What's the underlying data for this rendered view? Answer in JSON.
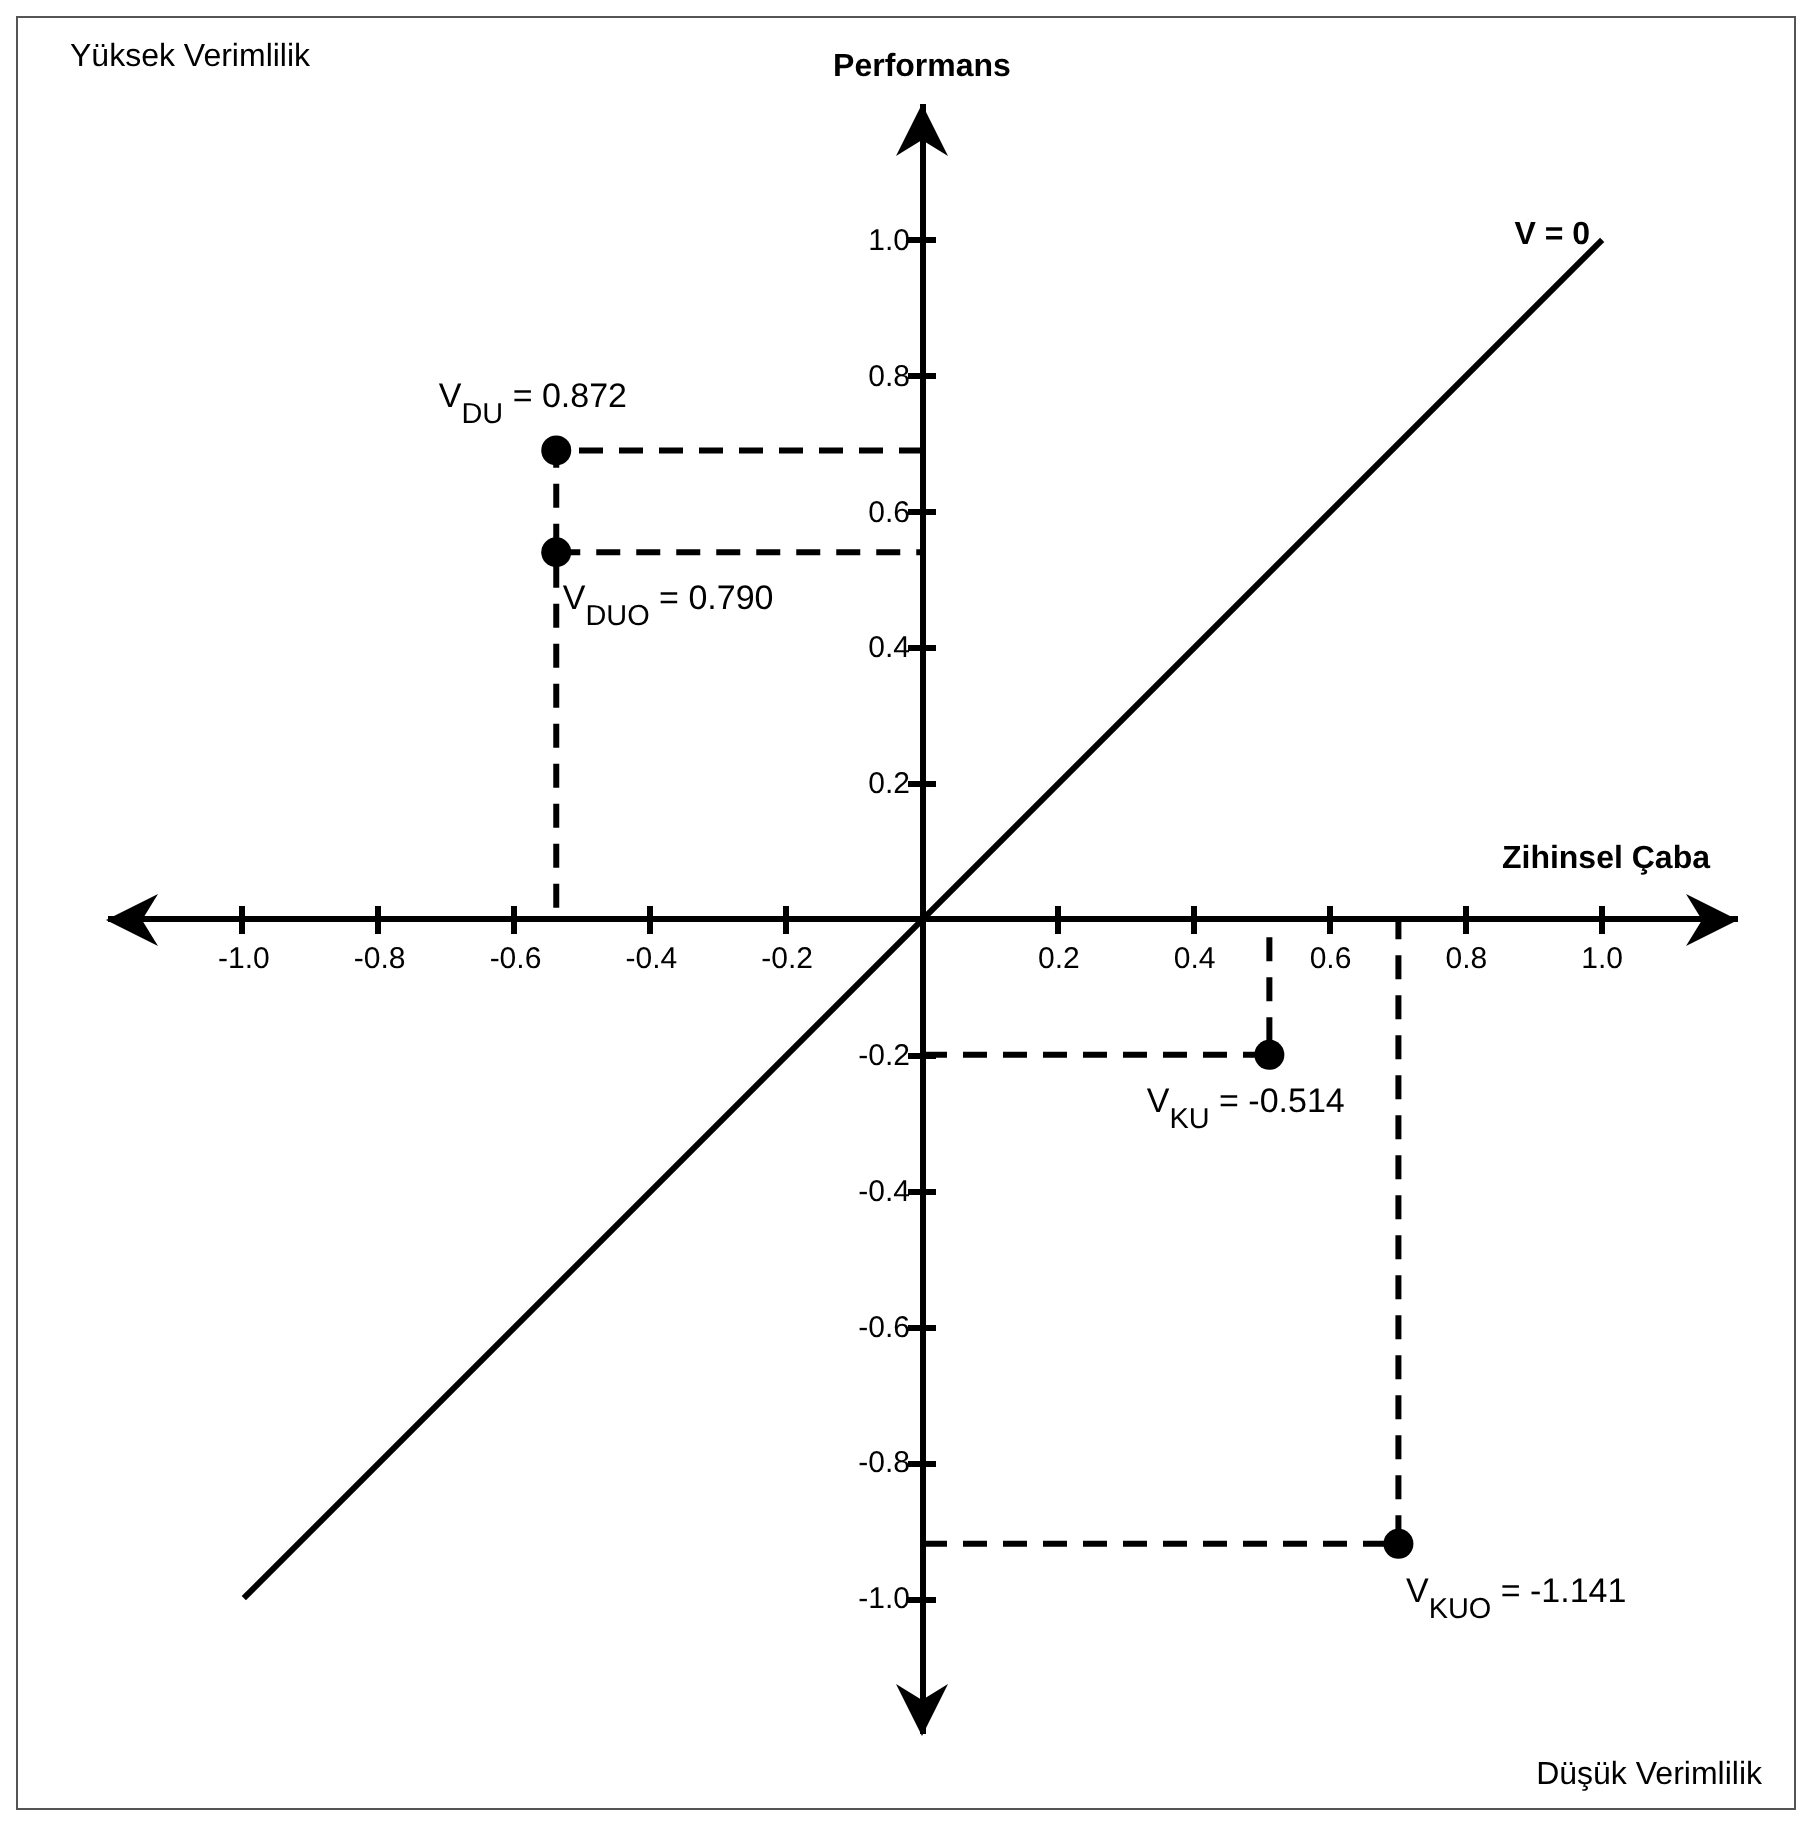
{
  "chart_data": {
    "type": "scatter",
    "xlabel": "Zihinsel Çaba",
    "ylabel": "Performans",
    "xlim": [
      -1.2,
      1.2
    ],
    "ylim": [
      -1.2,
      1.2
    ],
    "xticks": [
      {
        "value": -1,
        "label": "-1.0"
      },
      -0.8,
      -0.6,
      -0.4,
      -0.2,
      0.2,
      0.4,
      0.6,
      0.8,
      {
        "value": 1,
        "label": "1.0"
      }
    ],
    "yticks": [
      {
        "value": -1,
        "label": "-1.0"
      },
      -0.8,
      -0.6,
      -0.4,
      -0.2,
      0.2,
      0.4,
      0.6,
      0.8,
      {
        "value": 1,
        "label": "1.0"
      }
    ],
    "grid": false,
    "legend": false,
    "marker": "circle",
    "series": [
      {
        "type": "scatter",
        "color": "#000000",
        "x": [
          -0.54,
          -0.54,
          0.51,
          0.7
        ],
        "values": [
          0.69,
          0.54,
          -0.2,
          -0.92
        ]
      },
      {
        "type": "line",
        "name": "V = 0",
        "color": "#000000",
        "x": [
          -1,
          1
        ],
        "values": [
          -1,
          1
        ],
        "line_style": "solid",
        "marker": "none"
      },
      {
        "type": "line",
        "color": "#000000",
        "x": [
          0,
          -0.54,
          -0.54
        ],
        "values": [
          0.69,
          0.69,
          0
        ],
        "line_style": "dashed",
        "marker": "none"
      },
      {
        "type": "line",
        "color": "#000000",
        "x": [
          -0.54,
          0
        ],
        "values": [
          0.54,
          0.54
        ],
        "line_style": "dashed",
        "marker": "none"
      },
      {
        "type": "line",
        "color": "#000000",
        "x": [
          0,
          0.51,
          0.51
        ],
        "values": [
          -0.2,
          -0.2,
          0
        ],
        "line_style": "dashed",
        "marker": "none"
      },
      {
        "type": "line",
        "color": "#000000",
        "x": [
          0,
          0.7,
          0.7
        ],
        "values": [
          -0.92,
          -0.92,
          0
        ],
        "line_style": "dashed",
        "marker": "none"
      }
    ],
    "annotations": [
      "Yüksek Verimlilik",
      "Düşük Verimlilik",
      {
        "text": "V$_{DU}$ = 0.872",
        "x": -0.54,
        "y": 0.69
      },
      {
        "text": "V$_{DUO}$ = 0.790",
        "x": -0.54,
        "y": 0.54
      },
      {
        "text": "V$_{KU}$ = -0.514",
        "x": 0.51,
        "y": -0.2
      },
      {
        "text": "V$_{KUO}$ = -1.141",
        "x": 0.7,
        "y": -0.92
      }
    ]
  }
}
